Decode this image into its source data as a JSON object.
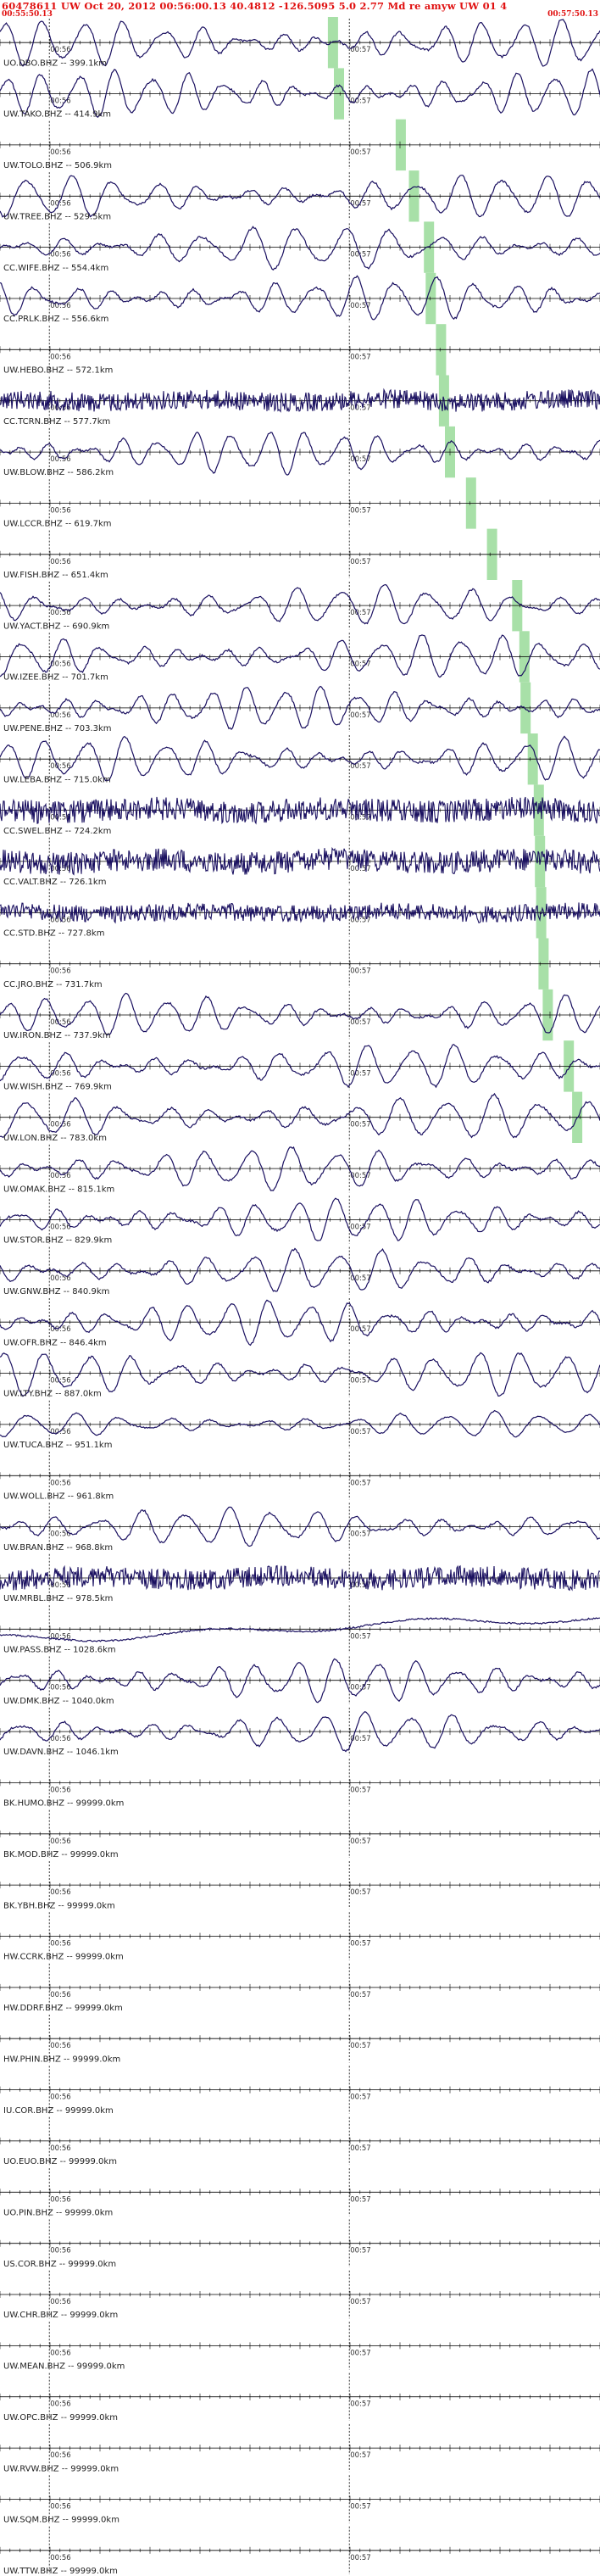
{
  "header": {
    "line1": "60478611 UW Oct 20, 2012 00:56:00.13    40.4812 -126.5095  5.0 2.77 Md re amyw UW 01   4",
    "start_time": "00:55:50.13",
    "end_time": "00:57:50.13"
  },
  "colors": {
    "header_text": "#e01010",
    "trace": "#1a1060",
    "pick_band": "#a8e0a8",
    "axis": "#000000"
  },
  "chart_data": {
    "type": "line",
    "title": "60478611 UW Oct 20, 2012 00:56:00.13 40.4812 -126.5095 5.0 2.77 Md re amyw UW 01 4",
    "xlabel": "",
    "ylabel": "",
    "x_range": [
      "00:55:50.13",
      "00:57:50.13"
    ],
    "time_marks": [
      "00:56",
      "00:57"
    ],
    "grid": false,
    "stations": [
      {
        "name": "UO.DBO.BHZ -- 399.1km",
        "distance_km": 399.1,
        "style": "wave",
        "amplitude": 0.9,
        "period": 12,
        "flat": false,
        "pick_frac": 0.555
      },
      {
        "name": "UW.TAKO.BHZ -- 414.9km",
        "distance_km": 414.9,
        "style": "wave",
        "amplitude": 0.9,
        "period": 11,
        "flat": false,
        "pick_frac": 0.565
      },
      {
        "name": "UW.TOLO.BHZ -- 506.9km",
        "distance_km": 506.9,
        "style": "flat",
        "amplitude": 0.0,
        "period": 12,
        "flat": true,
        "pick_frac": 0.668
      },
      {
        "name": "UW.TREE.BHZ -- 529.5km",
        "distance_km": 529.5,
        "style": "wave",
        "amplitude": 0.85,
        "period": 13,
        "flat": false,
        "pick_frac": 0.69
      },
      {
        "name": "CC.WIFE.BHZ -- 554.4km",
        "distance_km": 554.4,
        "style": "wave",
        "amplitude": 0.85,
        "period": 14,
        "flat": false,
        "pick_frac": 0.715
      },
      {
        "name": "CC.PRLK.BHZ -- 556.6km",
        "distance_km": 556.6,
        "style": "wave",
        "amplitude": 0.85,
        "period": 12,
        "flat": false,
        "pick_frac": 0.718
      },
      {
        "name": "UW.HEBO.BHZ -- 572.1km",
        "distance_km": 572.1,
        "style": "flat",
        "amplitude": 0.0,
        "period": 12,
        "flat": true,
        "pick_frac": 0.735
      },
      {
        "name": "CC.TCRN.BHZ -- 577.7km",
        "distance_km": 577.7,
        "style": "noise",
        "amplitude": 0.5,
        "period": 3,
        "flat": false,
        "pick_frac": 0.74
      },
      {
        "name": "UW.BLOW.BHZ -- 586.2km",
        "distance_km": 586.2,
        "style": "wave",
        "amplitude": 0.85,
        "period": 11,
        "flat": false,
        "pick_frac": 0.75
      },
      {
        "name": "UW.LCCR.BHZ -- 619.7km",
        "distance_km": 619.7,
        "style": "flat",
        "amplitude": 0.0,
        "period": 12,
        "flat": true,
        "pick_frac": 0.785
      },
      {
        "name": "UW.FISH.BHZ -- 651.4km",
        "distance_km": 651.4,
        "style": "flat",
        "amplitude": 0.0,
        "period": 12,
        "flat": true,
        "pick_frac": 0.82
      },
      {
        "name": "UW.YACT.BHZ -- 690.9km",
        "distance_km": 690.9,
        "style": "wave",
        "amplitude": 0.8,
        "period": 13,
        "flat": false,
        "pick_frac": 0.862
      },
      {
        "name": "UW.IZEE.BHZ -- 701.7km",
        "distance_km": 701.7,
        "style": "wave",
        "amplitude": 0.85,
        "period": 12,
        "flat": false,
        "pick_frac": 0.874
      },
      {
        "name": "UW.PENE.BHZ -- 703.3km",
        "distance_km": 703.3,
        "style": "wave",
        "amplitude": 0.85,
        "period": 11,
        "flat": false,
        "pick_frac": 0.876
      },
      {
        "name": "UW.LEBA.BHZ -- 715.0km",
        "distance_km": 715.0,
        "style": "wave",
        "amplitude": 0.85,
        "period": 12,
        "flat": false,
        "pick_frac": 0.888
      },
      {
        "name": "CC.SWEL.BHZ -- 724.2km",
        "distance_km": 724.2,
        "style": "noise",
        "amplitude": 0.6,
        "period": 3,
        "flat": false,
        "pick_frac": 0.898
      },
      {
        "name": "CC.VALT.BHZ -- 726.1km",
        "distance_km": 726.1,
        "style": "noise",
        "amplitude": 0.6,
        "period": 3,
        "flat": false,
        "pick_frac": 0.9
      },
      {
        "name": "CC.STD.BHZ -- 727.8km",
        "distance_km": 727.8,
        "style": "noise",
        "amplitude": 0.45,
        "period": 3,
        "flat": false,
        "pick_frac": 0.902
      },
      {
        "name": "CC.JRO.BHZ -- 731.7km",
        "distance_km": 731.7,
        "style": "flat",
        "amplitude": 0.0,
        "period": 12,
        "flat": true,
        "pick_frac": 0.906
      },
      {
        "name": "UW.IRON.BHZ -- 737.9km",
        "distance_km": 737.9,
        "style": "wave",
        "amplitude": 0.8,
        "period": 12,
        "flat": false,
        "pick_frac": 0.913
      },
      {
        "name": "UW.WISH.BHZ -- 769.9km",
        "distance_km": 769.9,
        "style": "wave",
        "amplitude": 0.85,
        "period": 13,
        "flat": false,
        "pick_frac": 0.948
      },
      {
        "name": "UW.LON.BHZ -- 783.0km",
        "distance_km": 783.0,
        "style": "wave",
        "amplitude": 0.85,
        "period": 14,
        "flat": false,
        "pick_frac": 0.962
      },
      {
        "name": "UW.OMAK.BHZ -- 815.1km",
        "distance_km": 815.1,
        "style": "wave",
        "amplitude": 0.85,
        "period": 13,
        "flat": false,
        "pick_frac": null
      },
      {
        "name": "UW.STOR.BHZ -- 829.9km",
        "distance_km": 829.9,
        "style": "wave",
        "amplitude": 0.85,
        "period": 12,
        "flat": false,
        "pick_frac": null
      },
      {
        "name": "UW.GNW.BHZ -- 840.9km",
        "distance_km": 840.9,
        "style": "wave",
        "amplitude": 0.85,
        "period": 13,
        "flat": false,
        "pick_frac": null
      },
      {
        "name": "UW.OFR.BHZ -- 846.4km",
        "distance_km": 846.4,
        "style": "wave",
        "amplitude": 0.85,
        "period": 12,
        "flat": false,
        "pick_frac": null
      },
      {
        "name": "UW.LTY.BHZ -- 887.0km",
        "distance_km": 887.0,
        "style": "wave",
        "amplitude": 0.85,
        "period": 13,
        "flat": false,
        "pick_frac": null
      },
      {
        "name": "UW.TUCA.BHZ -- 951.1km",
        "distance_km": 951.1,
        "style": "wave",
        "amplitude": 0.5,
        "period": 14,
        "flat": false,
        "pick_frac": null
      },
      {
        "name": "UW.WOLL.BHZ -- 961.8km",
        "distance_km": 961.8,
        "style": "flat",
        "amplitude": 0.0,
        "period": 12,
        "flat": true,
        "pick_frac": null
      },
      {
        "name": "UW.BRAN.BHZ -- 968.8km",
        "distance_km": 968.8,
        "style": "wave",
        "amplitude": 0.75,
        "period": 13,
        "flat": false,
        "pick_frac": null
      },
      {
        "name": "UW.MRBL.BHZ -- 978.5km",
        "distance_km": 978.5,
        "style": "noise",
        "amplitude": 0.55,
        "period": 3,
        "flat": false,
        "pick_frac": null
      },
      {
        "name": "UW.PASS.BHZ -- 1028.6km",
        "distance_km": 1028.6,
        "style": "drift",
        "amplitude": 0.5,
        "period": 40,
        "flat": false,
        "pick_frac": null
      },
      {
        "name": "UW.DMK.BHZ -- 1040.0km",
        "distance_km": 1040.0,
        "style": "wave",
        "amplitude": 0.85,
        "period": 12,
        "flat": false,
        "pick_frac": null
      },
      {
        "name": "UW.DAVN.BHZ -- 1046.1km",
        "distance_km": 1046.1,
        "style": "wave",
        "amplitude": 0.75,
        "period": 13,
        "flat": false,
        "pick_frac": null
      },
      {
        "name": "BK.HUMO.BHZ -- 99999.0km",
        "distance_km": 99999.0,
        "style": "flat",
        "amplitude": 0.0,
        "period": 12,
        "flat": true,
        "pick_frac": null
      },
      {
        "name": "BK.MOD.BHZ -- 99999.0km",
        "distance_km": 99999.0,
        "style": "flat",
        "amplitude": 0.0,
        "period": 12,
        "flat": true,
        "pick_frac": null
      },
      {
        "name": "BK.YBH.BHZ -- 99999.0km",
        "distance_km": 99999.0,
        "style": "flat",
        "amplitude": 0.0,
        "period": 12,
        "flat": true,
        "pick_frac": null
      },
      {
        "name": "HW.CCRK.BHZ -- 99999.0km",
        "distance_km": 99999.0,
        "style": "flat",
        "amplitude": 0.0,
        "period": 12,
        "flat": true,
        "pick_frac": null
      },
      {
        "name": "HW.DDRF.BHZ -- 99999.0km",
        "distance_km": 99999.0,
        "style": "flat",
        "amplitude": 0.0,
        "period": 12,
        "flat": true,
        "pick_frac": null
      },
      {
        "name": "HW.PHIN.BHZ -- 99999.0km",
        "distance_km": 99999.0,
        "style": "flat",
        "amplitude": 0.0,
        "period": 12,
        "flat": true,
        "pick_frac": null
      },
      {
        "name": "IU.COR.BHZ -- 99999.0km",
        "distance_km": 99999.0,
        "style": "flat",
        "amplitude": 0.0,
        "period": 12,
        "flat": true,
        "pick_frac": null
      },
      {
        "name": "UO.EUO.BHZ -- 99999.0km",
        "distance_km": 99999.0,
        "style": "flat",
        "amplitude": 0.0,
        "period": 12,
        "flat": true,
        "pick_frac": null
      },
      {
        "name": "UO.PIN.BHZ -- 99999.0km",
        "distance_km": 99999.0,
        "style": "flat",
        "amplitude": 0.0,
        "period": 12,
        "flat": true,
        "pick_frac": null
      },
      {
        "name": "US.COR.BHZ -- 99999.0km",
        "distance_km": 99999.0,
        "style": "flat",
        "amplitude": 0.0,
        "period": 12,
        "flat": true,
        "pick_frac": null
      },
      {
        "name": "UW.CHR.BHZ -- 99999.0km",
        "distance_km": 99999.0,
        "style": "flat",
        "amplitude": 0.0,
        "period": 12,
        "flat": true,
        "pick_frac": null
      },
      {
        "name": "UW.MEAN.BHZ -- 99999.0km",
        "distance_km": 99999.0,
        "style": "flat",
        "amplitude": 0.0,
        "period": 12,
        "flat": true,
        "pick_frac": null
      },
      {
        "name": "UW.OPC.BHZ -- 99999.0km",
        "distance_km": 99999.0,
        "style": "flat",
        "amplitude": 0.0,
        "period": 12,
        "flat": true,
        "pick_frac": null
      },
      {
        "name": "UW.RVW.BHZ -- 99999.0km",
        "distance_km": 99999.0,
        "style": "flat",
        "amplitude": 0.0,
        "period": 12,
        "flat": true,
        "pick_frac": null
      },
      {
        "name": "UW.SQM.BHZ -- 99999.0km",
        "distance_km": 99999.0,
        "style": "flat",
        "amplitude": 0.0,
        "period": 12,
        "flat": true,
        "pick_frac": null
      },
      {
        "name": "UW.TTW.BHZ -- 99999.0km",
        "distance_km": 99999.0,
        "style": "flat",
        "amplitude": 0.0,
        "period": 12,
        "flat": true,
        "pick_frac": null
      }
    ]
  }
}
